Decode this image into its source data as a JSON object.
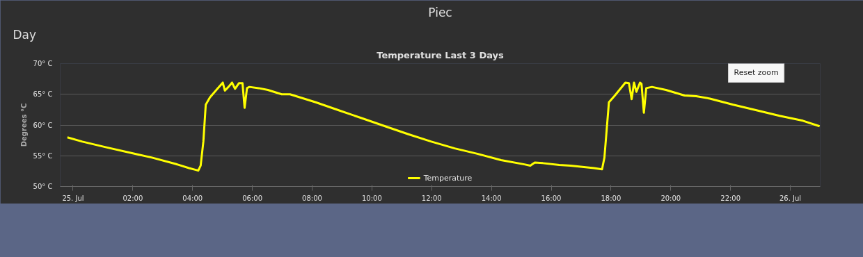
{
  "chart_data": {
    "type": "line",
    "title": "Temperature Last 3 Days",
    "ylabel": "Degrees °C",
    "annotations": [
      "Piec",
      "Day",
      "Reset zoom"
    ],
    "x": [
      -0.19,
      0.31,
      1.09,
      2.0,
      2.64,
      3.41,
      3.88,
      4.11,
      4.19,
      4.27,
      4.36,
      4.44,
      4.58,
      4.81,
      5.01,
      5.08,
      5.2,
      5.32,
      5.42,
      5.55,
      5.67,
      5.74,
      5.82,
      5.9,
      6.21,
      6.52,
      6.98,
      7.26,
      8.12,
      8.89,
      9.67,
      10.44,
      11.22,
      11.99,
      12.77,
      13.55,
      14.32,
      15.1,
      15.3,
      15.45,
      15.72,
      16.27,
      16.65,
      17.43,
      17.7,
      17.78,
      17.93,
      18.13,
      18.48,
      18.6,
      18.69,
      18.77,
      18.85,
      18.97,
      19.02,
      19.1,
      19.18,
      19.37,
      19.84,
      20.46,
      20.85,
      21.31,
      22.09,
      22.87,
      23.64,
      24.42,
      24.98
    ],
    "series": [
      {
        "name": "Temperature",
        "color": "#ffff00",
        "values": [
          58.0,
          57.3,
          56.4,
          55.4,
          54.7,
          53.7,
          53.0,
          52.7,
          52.6,
          53.4,
          57.3,
          63.3,
          64.5,
          65.8,
          66.9,
          65.6,
          66.2,
          66.9,
          65.9,
          66.8,
          66.8,
          62.8,
          66.0,
          66.2,
          66.0,
          65.7,
          65.0,
          65.0,
          63.7,
          62.4,
          61.1,
          59.8,
          58.5,
          57.3,
          56.2,
          55.3,
          54.3,
          53.6,
          53.4,
          53.9,
          53.8,
          53.5,
          53.4,
          53.0,
          52.8,
          54.7,
          63.7,
          64.8,
          66.9,
          66.8,
          64.2,
          66.9,
          65.4,
          66.9,
          66.7,
          62.0,
          66.0,
          66.2,
          65.7,
          64.8,
          64.7,
          64.3,
          63.3,
          62.4,
          61.5,
          60.7,
          59.8
        ]
      }
    ],
    "xlim": [
      -0.43,
      25.0
    ],
    "xticks": [
      {
        "value": 0,
        "label": "25. Jul"
      },
      {
        "value": 2,
        "label": "02:00"
      },
      {
        "value": 4,
        "label": "04:00"
      },
      {
        "value": 6,
        "label": "06:00"
      },
      {
        "value": 8,
        "label": "08:00"
      },
      {
        "value": 10,
        "label": "10:00"
      },
      {
        "value": 12,
        "label": "12:00"
      },
      {
        "value": 14,
        "label": "14:00"
      },
      {
        "value": 16,
        "label": "16:00"
      },
      {
        "value": 18,
        "label": "18:00"
      },
      {
        "value": 20,
        "label": "20:00"
      },
      {
        "value": 22,
        "label": "22:00"
      },
      {
        "value": 24,
        "label": "26. Jul"
      }
    ],
    "ylim": [
      50,
      70
    ],
    "yticks": [
      {
        "value": 50,
        "label": "50° C"
      },
      {
        "value": 55,
        "label": "55° C"
      },
      {
        "value": 60,
        "label": "60° C"
      },
      {
        "value": 65,
        "label": "65° C"
      },
      {
        "value": 70,
        "label": "70° C"
      }
    ],
    "grid": "y",
    "legend": "bottom",
    "marker": "none",
    "line_style": "solid"
  }
}
